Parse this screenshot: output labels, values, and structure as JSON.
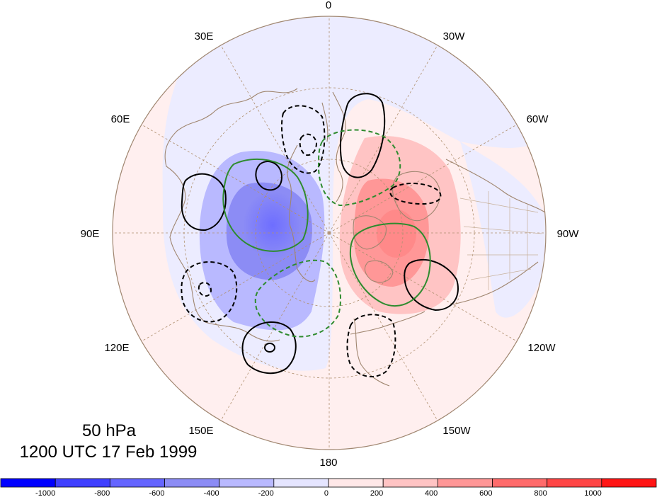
{
  "map": {
    "projection": "north-polar-stereographic",
    "level": "50 hPa",
    "time": "1200 UTC 17 Feb 1999",
    "longitude_labels": [
      "0",
      "30W",
      "60W",
      "90W",
      "120W",
      "150W",
      "180",
      "150E",
      "120E",
      "90E",
      "60E",
      "30E"
    ],
    "colors": {
      "land_outline": "#a08670",
      "graticule": "#b09070",
      "contour_solid": "#000000",
      "contour_dashed": "#000000",
      "contour_green": "#2e8b2e"
    }
  },
  "colorbar": {
    "colors": [
      "#0000ff",
      "#4040ff",
      "#6565ff",
      "#8c8cf5",
      "#b9b9ff",
      "#e5e5ff",
      "#ffe8e8",
      "#ffc4c4",
      "#ff9797",
      "#ff6b6b",
      "#ff4646",
      "#ff1515"
    ],
    "ticks": [
      "-1000",
      "-800",
      "-600",
      "-400",
      "-200",
      "0",
      "200",
      "400",
      "600",
      "800",
      "1000"
    ]
  }
}
